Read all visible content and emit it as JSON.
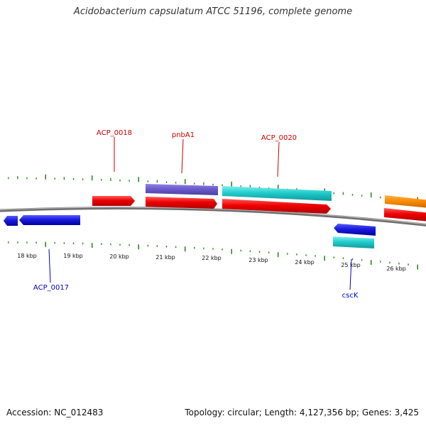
{
  "title": "Acidobacterium capsulatum ATCC 51196, complete genome",
  "footer": {
    "accession": "Accession: NC_012483",
    "summary": "Topology: circular; Length: 4,127,356 bp; Genes: 3,425"
  },
  "scale_labels": [
    "18 kbp",
    "19 kbp",
    "20 kbp",
    "21 kbp",
    "22 kbp",
    "23 kbp",
    "24 kbp",
    "25 kbp",
    "26 kbp"
  ],
  "gene_labels": [
    {
      "name": "ACP_0018",
      "strand": "forward"
    },
    {
      "name": "pnbA1",
      "strand": "forward"
    },
    {
      "name": "ACP_0020",
      "strand": "forward"
    },
    {
      "name": "ACP_0017",
      "strand": "reverse"
    },
    {
      "name": "cscK",
      "strand": "reverse"
    }
  ],
  "colors": {
    "tick": "#2a8a1f",
    "backbone": "#8c8c8c",
    "forward_label": "#cc0000",
    "reverse_label": "#0000cc",
    "cds_red": "#ee0000",
    "cds_purple": "#6a5acd",
    "cds_cyan": "#22cccc",
    "cds_blue": "#1a1adc",
    "cds_orange": "#ff8c00"
  }
}
